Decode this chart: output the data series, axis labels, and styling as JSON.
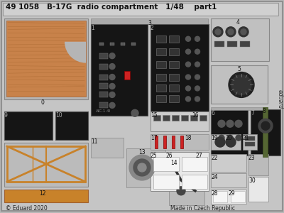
{
  "bg_color": "#b8b8b8",
  "card_bg": "#c8c8c8",
  "title": "49 1058   B-17G  radio compartment   1/48    part1",
  "footer_left": "© Eduard 2020",
  "footer_right": "Made in Czech Republic",
  "brand_text": "eduard",
  "title_fontsize": 7.5,
  "footer_fontsize": 5.5,
  "brand_fontsize": 5.5
}
